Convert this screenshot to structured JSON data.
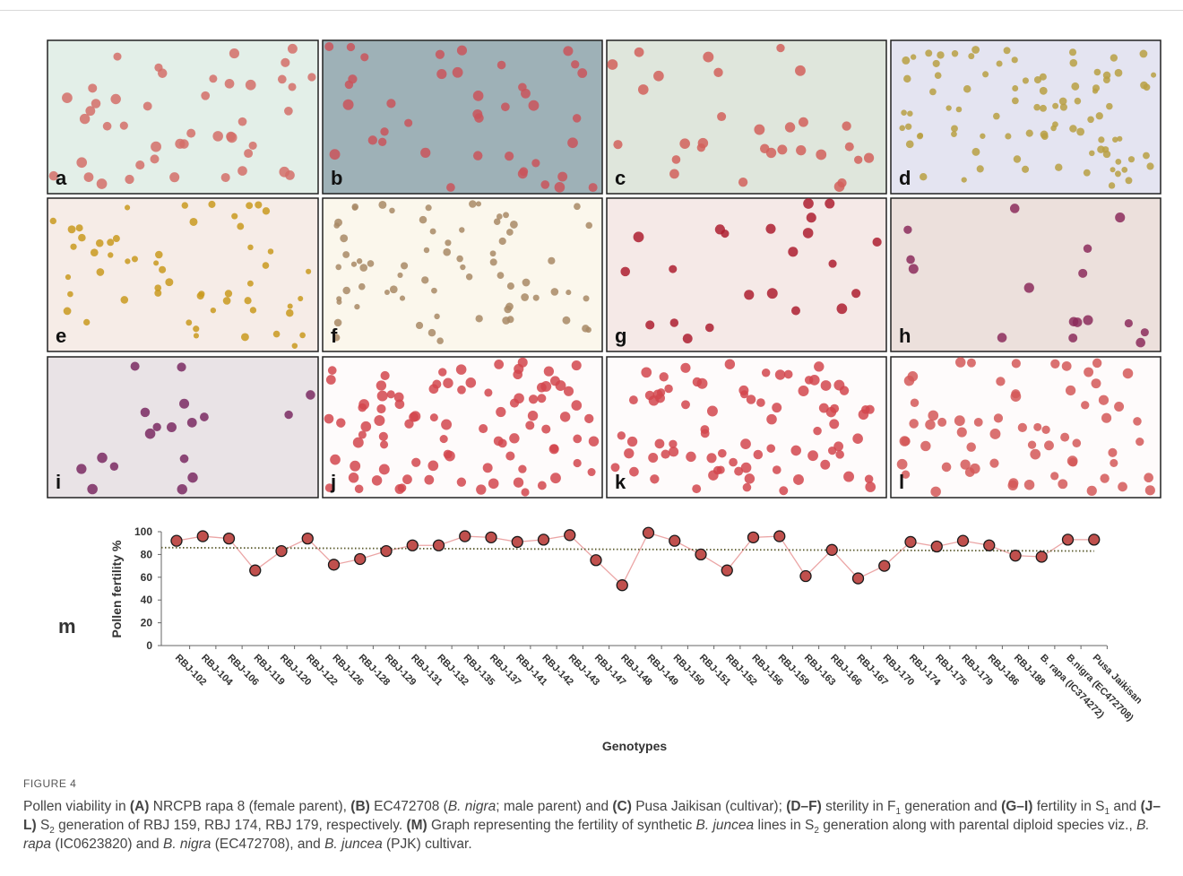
{
  "panels": {
    "labels": [
      "a",
      "b",
      "c",
      "d",
      "e",
      "f",
      "g",
      "h",
      "i",
      "j",
      "k",
      "l"
    ]
  },
  "chart_data": {
    "type": "line",
    "panel_label": "m",
    "y_label": "Pollen fertility %",
    "x_label": "Genotypes",
    "categories": [
      "RBJ-102",
      "RBJ-104",
      "RBJ-106",
      "RBJ-119",
      "RBJ-120",
      "RBJ-122",
      "RBJ-126",
      "RBJ-128",
      "RBJ-129",
      "RBJ-131",
      "RBJ-132",
      "RBJ-135",
      "RBJ-137",
      "RBJ-141",
      "RBJ-142",
      "RBJ-143",
      "RBJ-147",
      "RBJ-148",
      "RBJ-149",
      "RBJ-150",
      "RBJ-151",
      "RBJ-152",
      "RBJ-156",
      "RBJ-159",
      "RBJ-163",
      "RBJ-166",
      "RBJ-167",
      "RBJ-170",
      "RBJ-174",
      "RBJ-175",
      "RBJ-179",
      "RBJ-186",
      "RBJ-188",
      "B. rapa (IC374272)",
      "B.nigra (EC472708)",
      "Pusa Jaikisan"
    ],
    "values": [
      92,
      96,
      94,
      66,
      83,
      94,
      71,
      76,
      83,
      88,
      88,
      96,
      95,
      91,
      93,
      97,
      75,
      53,
      99,
      92,
      80,
      66,
      95,
      96,
      61,
      84,
      59,
      70,
      91,
      87,
      92,
      88,
      79,
      78,
      93,
      93
    ],
    "color": "#c0504d",
    "line_color": "#eba5a5",
    "trendline": [
      86,
      83
    ],
    "trendline_color": "#5b5b2e",
    "ylim": [
      0,
      100
    ],
    "yticks": [
      0,
      20,
      40,
      60,
      80,
      100
    ],
    "grid": false
  },
  "caption": {
    "title": "FIGURE 4",
    "parts": [
      "Pollen viability in ",
      "(A)",
      " NRCPB rapa 8 (female parent), ",
      "(B)",
      " EC472708 (",
      "B. nigra",
      "; male parent) and ",
      "(C)",
      " Pusa Jaikisan (cultivar); ",
      "(D–F)",
      " sterility in F",
      "1",
      " generation and ",
      "(G–I)",
      " fertility in S",
      "1",
      " and ",
      "(J–L)",
      " S",
      "2",
      " generation of RBJ 159, RBJ 174, RBJ 179, respectively. ",
      "(M)",
      " Graph representing the fertility of synthetic ",
      "B. juncea",
      " lines in S",
      "2",
      " generation along with parental diploid species viz., ",
      "B. rapa",
      " (IC0623820) and ",
      "B. nigra",
      " (EC472708), and ",
      "B. juncea",
      " (PJK) cultivar."
    ]
  }
}
